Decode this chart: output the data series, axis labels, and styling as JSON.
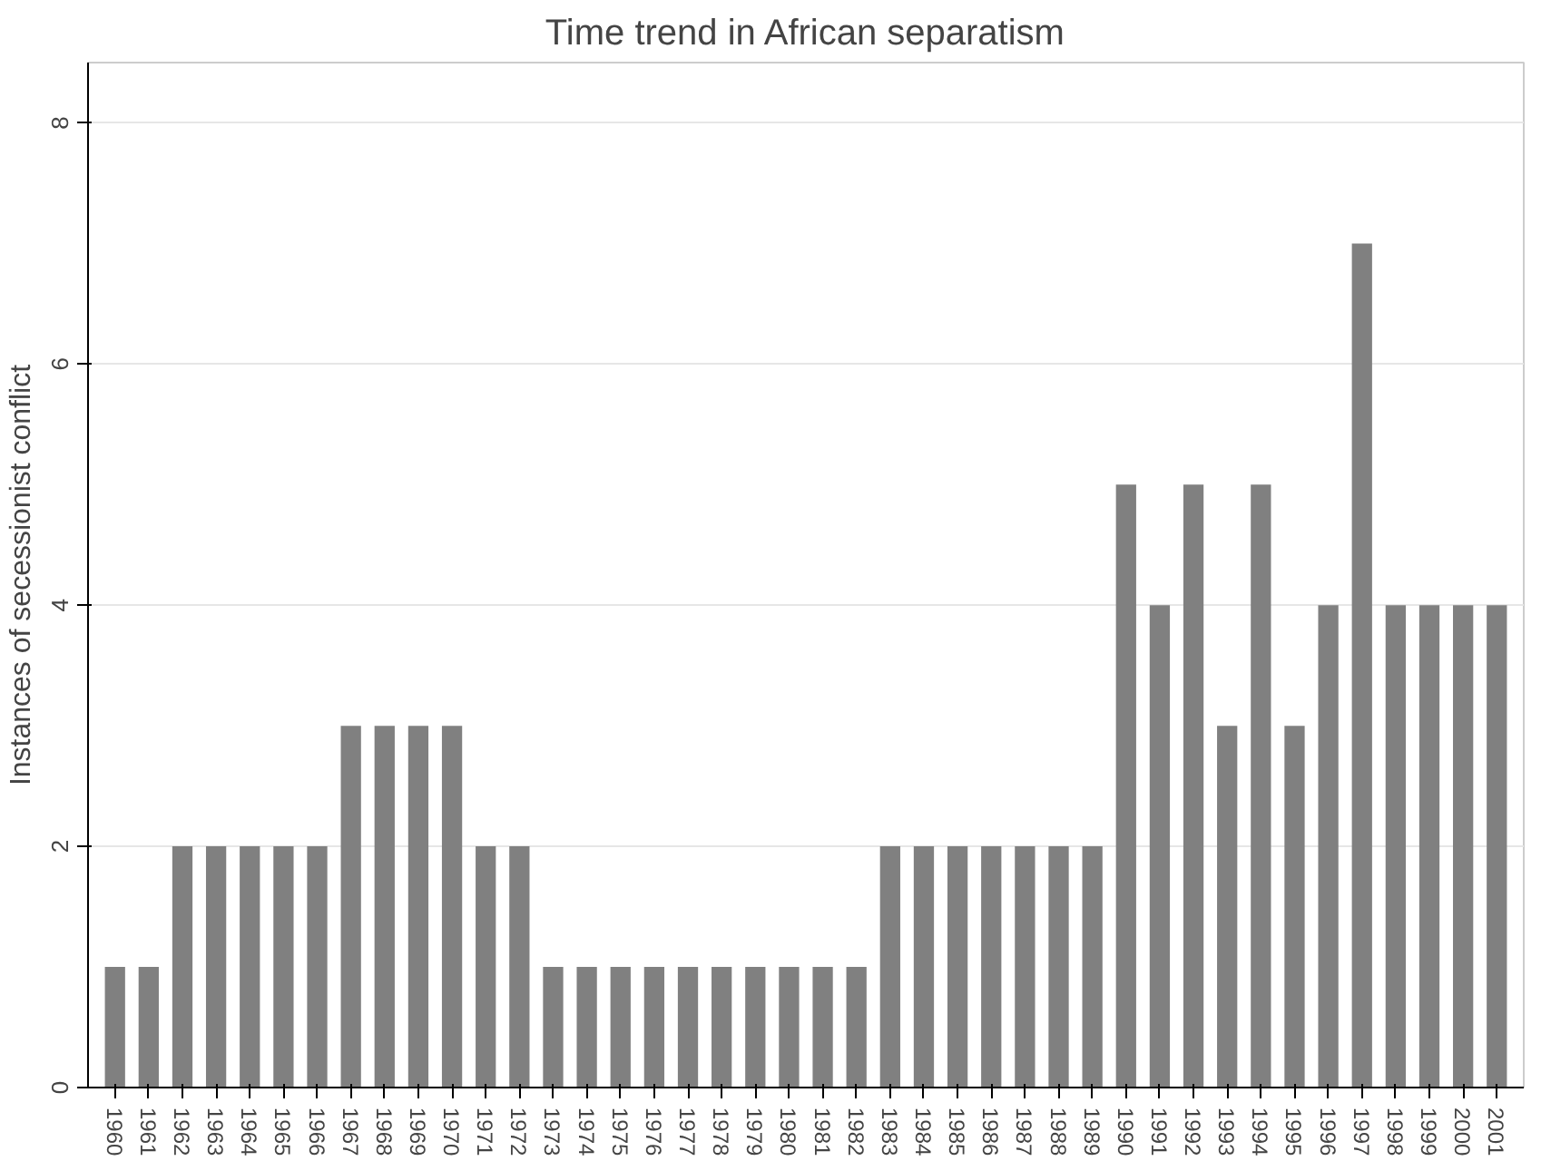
{
  "chart_data": {
    "type": "bar",
    "title": "Time trend in African separatism",
    "ylabel": "Instances of secessionist conflict",
    "categories": [
      "1960",
      "1961",
      "1962",
      "1963",
      "1964",
      "1965",
      "1966",
      "1967",
      "1968",
      "1969",
      "1970",
      "1971",
      "1972",
      "1973",
      "1974",
      "1975",
      "1976",
      "1977",
      "1978",
      "1979",
      "1980",
      "1981",
      "1982",
      "1983",
      "1984",
      "1985",
      "1986",
      "1987",
      "1988",
      "1989",
      "1990",
      "1991",
      "1992",
      "1993",
      "1994",
      "1995",
      "1996",
      "1997",
      "1998",
      "1999",
      "2000",
      "2001"
    ],
    "values": [
      1,
      1,
      2,
      2,
      2,
      2,
      2,
      3,
      3,
      3,
      3,
      2,
      2,
      1,
      1,
      1,
      1,
      1,
      1,
      1,
      1,
      1,
      1,
      2,
      2,
      2,
      2,
      2,
      2,
      2,
      5,
      4,
      5,
      3,
      5,
      3,
      4,
      7,
      4,
      4,
      4,
      4
    ],
    "color": "#808080",
    "ylim": [
      0,
      8.5
    ],
    "yticks": [
      0,
      2,
      4,
      6,
      8
    ],
    "grid": "y"
  }
}
